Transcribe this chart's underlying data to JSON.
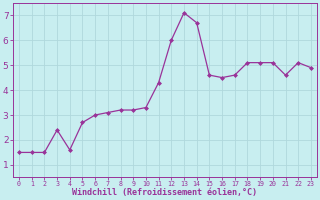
{
  "x": [
    0,
    1,
    2,
    3,
    4,
    5,
    6,
    7,
    8,
    9,
    10,
    11,
    12,
    13,
    14,
    15,
    16,
    17,
    18,
    19,
    20,
    21,
    22,
    23
  ],
  "y": [
    1.5,
    1.5,
    1.5,
    2.4,
    1.6,
    2.7,
    3.0,
    3.1,
    3.2,
    3.2,
    3.3,
    4.3,
    6.0,
    7.1,
    6.7,
    4.6,
    4.5,
    4.6,
    5.1,
    5.1,
    5.1,
    4.6,
    5.1,
    4.9
  ],
  "line_color": "#993399",
  "marker": "D",
  "marker_size": 2.0,
  "bg_color": "#c8eef0",
  "grid_color": "#b0d8dc",
  "xlabel": "Windchill (Refroidissement éolien,°C)",
  "xlabel_color": "#993399",
  "tick_color": "#993399",
  "spine_color": "#993399",
  "ylim": [
    0.5,
    7.5
  ],
  "xlim": [
    -0.5,
    23.5
  ],
  "yticks": [
    1,
    2,
    3,
    4,
    5,
    6,
    7
  ],
  "xticks": [
    0,
    1,
    2,
    3,
    4,
    5,
    6,
    7,
    8,
    9,
    10,
    11,
    12,
    13,
    14,
    15,
    16,
    17,
    18,
    19,
    20,
    21,
    22,
    23
  ],
  "linewidth": 0.9,
  "xlabel_fontsize": 6.0,
  "ytick_fontsize": 6.5,
  "xtick_fontsize": 4.8
}
